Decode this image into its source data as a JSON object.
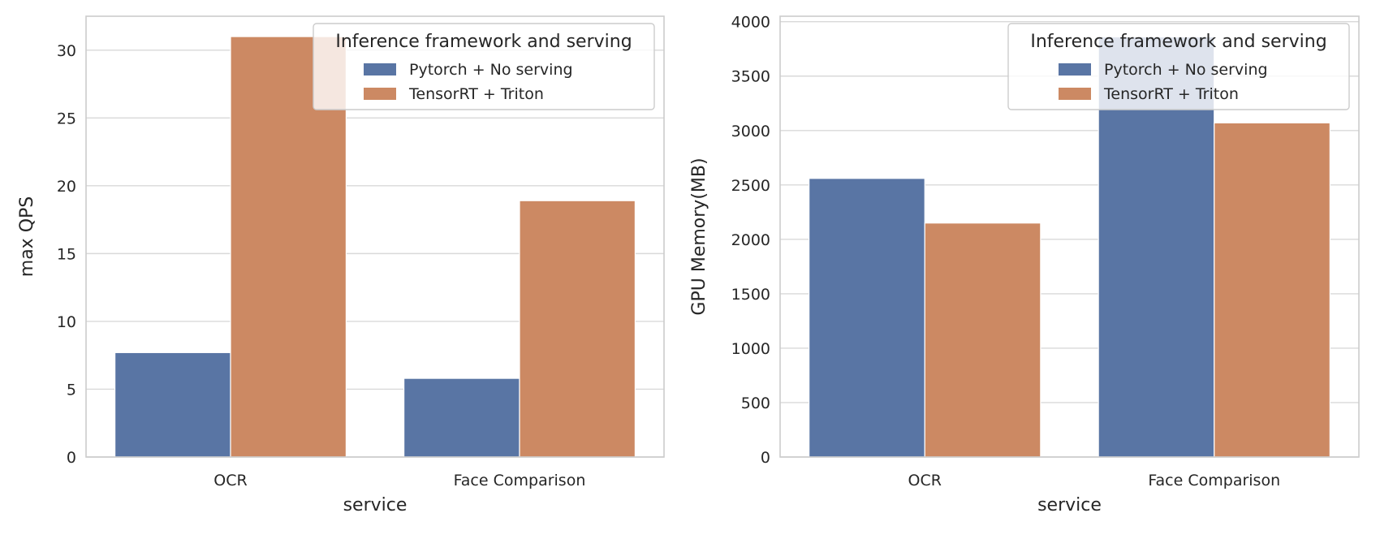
{
  "chart_data": [
    {
      "type": "bar",
      "categories": [
        "OCR",
        "Face Comparison"
      ],
      "series": [
        {
          "name": "Pytorch + No serving",
          "values": [
            7.7,
            5.8
          ]
        },
        {
          "name": "TensorRT + Triton",
          "values": [
            31.0,
            18.9
          ]
        }
      ],
      "xlabel": "service",
      "ylabel": "max QPS",
      "ylim": [
        0,
        32.5
      ],
      "yticks": [
        0,
        5,
        10,
        15,
        20,
        25,
        30
      ],
      "grid": true,
      "legend": {
        "title": "Inference framework and serving",
        "placement": "top-right"
      }
    },
    {
      "type": "bar",
      "categories": [
        "OCR",
        "Face Comparison"
      ],
      "series": [
        {
          "name": "Pytorch + No serving",
          "values": [
            2560,
            3860
          ]
        },
        {
          "name": "TensorRT + Triton",
          "values": [
            2150,
            3070
          ]
        }
      ],
      "xlabel": "service",
      "ylabel": "GPU Memory(MB)",
      "ylim": [
        0,
        4050
      ],
      "yticks": [
        0,
        500,
        1000,
        1500,
        2000,
        2500,
        3000,
        3500,
        4000
      ],
      "grid": true,
      "legend": {
        "title": "Inference framework and serving",
        "placement": "top-right"
      }
    }
  ],
  "colors": {
    "series": [
      "#5975a4",
      "#cc8963"
    ],
    "grid": "#d9d9d9",
    "frame": "#cccccc",
    "text": "#262626"
  }
}
